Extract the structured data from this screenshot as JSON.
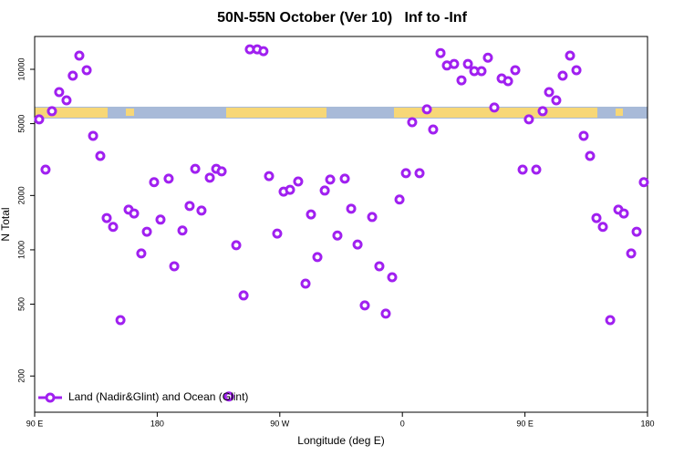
{
  "chart_data": {
    "type": "scatter",
    "title": "50N-55N October (Ver 10)   Inf to -Inf",
    "x_label": "Longitude (deg E)",
    "y_label": "N Total",
    "series": [
      {
        "name": "Land (Nadir&Glint) and Ocean (Glint)",
        "color": "#a020f0",
        "x": [
          93.3,
          98.0,
          102.7,
          108.0,
          113.4,
          118.0,
          122.8,
          128.2,
          132.9,
          138.2,
          142.9,
          147.6,
          153.0,
          159.0,
          163.0,
          168.3,
          172.4,
          177.7,
          182.4,
          188.4,
          192.5,
          198.5,
          203.8,
          207.9,
          212.5,
          218.6,
          223.3,
          227.3,
          232.6,
          238.0,
          243.4,
          248.0,
          253.4,
          258.0,
          262.1,
          268.1,
          272.8,
          277.5,
          283.5,
          288.9,
          292.9,
          297.6,
          303.0,
          307.0,
          312.3,
          317.7,
          322.4,
          327.1,
          332.4,
          337.8,
          343.1,
          347.8,
          352.5,
          357.9,
          362.6,
          367.2,
          372.6,
          378.0,
          382.6,
          388.0,
          392.7,
          398.0,
          403.4,
          408.1,
          412.8,
          418.1,
          422.8,
          427.5,
          432.9,
          437.6,
          442.9,
          448.3,
          452.9,
          458.3,
          463.0,
          467.7,
          473.0,
          477.7,
          483.1,
          487.8,
          493.1,
          497.8,
          502.5,
          507.2,
          512.6,
          518.6,
          522.6,
          528.0,
          532.0,
          537.3
        ],
        "values": [
          5280,
          2780,
          5860,
          7480,
          6730,
          9220,
          11900,
          9890,
          4280,
          3310,
          1500,
          1340,
          408,
          1670,
          1590,
          955,
          1260,
          2370,
          1470,
          2480,
          811,
          1280,
          1750,
          2810,
          1650,
          2510,
          2810,
          2720,
          154,
          1060,
          559,
          12900,
          12900,
          12600,
          2560,
          1230,
          2100,
          2150,
          2390,
          650,
          1570,
          912,
          2130,
          2450,
          1200,
          2480,
          1690,
          1070,
          492,
          1520,
          811,
          443,
          705,
          1900,
          2660,
          5090,
          2660,
          6000,
          4640,
          12300,
          10500,
          10700,
          8690,
          10700,
          9770,
          9770,
          11600,
          6140,
          8900,
          8600,
          9890,
          2780,
          5280,
          2780,
          5860,
          7480,
          6730,
          9220,
          11900,
          9890,
          4280,
          3310,
          1500,
          1340,
          408,
          1670,
          1590,
          955,
          1260,
          2370
        ]
      }
    ],
    "xlim": [
      90,
      540
    ],
    "xticks": [
      {
        "value": 90,
        "label": "90 E"
      },
      180,
      {
        "value": 270,
        "label": "90 W"
      },
      {
        "value": 360,
        "label": "0"
      },
      {
        "value": 450,
        "label": "90 E"
      },
      {
        "value": 540,
        "label": "180"
      }
    ],
    "ylim": [
      126,
      15200
    ],
    "ylog": true,
    "yticks": [
      200,
      500,
      1000,
      2000,
      5000,
      10000
    ],
    "legend": "lower left"
  }
}
